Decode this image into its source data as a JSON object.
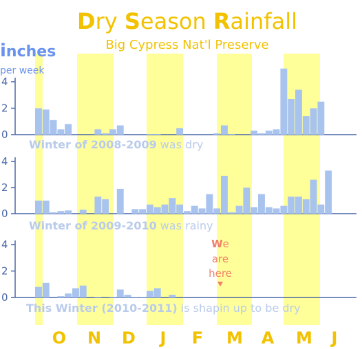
{
  "chart_data": {
    "type": "bar",
    "title": "Dry Season Rainfall",
    "title_parts": [
      "D",
      "ry ",
      "S",
      "eason ",
      "R",
      "ainfall"
    ],
    "subtitle": "Big Cypress Nat'l Preserve",
    "ylabel": "inches per week",
    "ylabel_parts": [
      "i",
      "nches"
    ],
    "ylabel_sub": "per week",
    "ylim": [
      0,
      4
    ],
    "yticks": [
      "0",
      "2",
      "4"
    ],
    "months": [
      "O",
      "N",
      "D",
      "J",
      "F",
      "M",
      "A",
      "M",
      "J"
    ],
    "highlight_color": "#ffff99",
    "bar_color": "#a9c3ef",
    "axis_color": "#4a67a8",
    "series": [
      {
        "caption": {
          "bold": "Winter of 2008-2009",
          "plain": " was dry"
        },
        "values": [
          2.0,
          1.9,
          1.1,
          0.4,
          0.8,
          0,
          0,
          0,
          0.4,
          0.1,
          0.4,
          0.7,
          0,
          0,
          0,
          0.05,
          0.05,
          0,
          0,
          0.5,
          0,
          0,
          0,
          0,
          0.1,
          0.7,
          0.05,
          0,
          0,
          0.3,
          0.1,
          0.3,
          0.4,
          5.0,
          2.7,
          3.4,
          1.4,
          2.0,
          2.5
        ]
      },
      {
        "caption": {
          "bold": "Winter of 2009-2010",
          "plain": " was rainy"
        },
        "values": [
          1.0,
          1.0,
          0.1,
          0.2,
          0.25,
          0,
          0.3,
          0,
          1.3,
          1.1,
          0,
          1.9,
          0,
          0.35,
          0.35,
          0.7,
          0.5,
          0.7,
          1.2,
          0.7,
          0.2,
          0.6,
          0.4,
          1.5,
          0.4,
          2.9,
          0.1,
          0.6,
          2.0,
          0.5,
          1.5,
          0.5,
          0.4,
          0.6,
          1.3,
          1.3,
          1.1,
          2.6,
          0.7,
          3.3
        ]
      },
      {
        "caption": {
          "bold": "This Winter (2010-2011)",
          "plain": " is shapin up to be dry"
        },
        "values": [
          0.8,
          1.1,
          0,
          0.1,
          0.3,
          0.7,
          0.9,
          0,
          0.05,
          0,
          0.05,
          0.6,
          0.2,
          0.05,
          0.05,
          0.5,
          0.7,
          0,
          0.2
        ]
      }
    ],
    "annotation": {
      "lines": [
        "W",
        "e",
        "are",
        "here"
      ]
    }
  }
}
